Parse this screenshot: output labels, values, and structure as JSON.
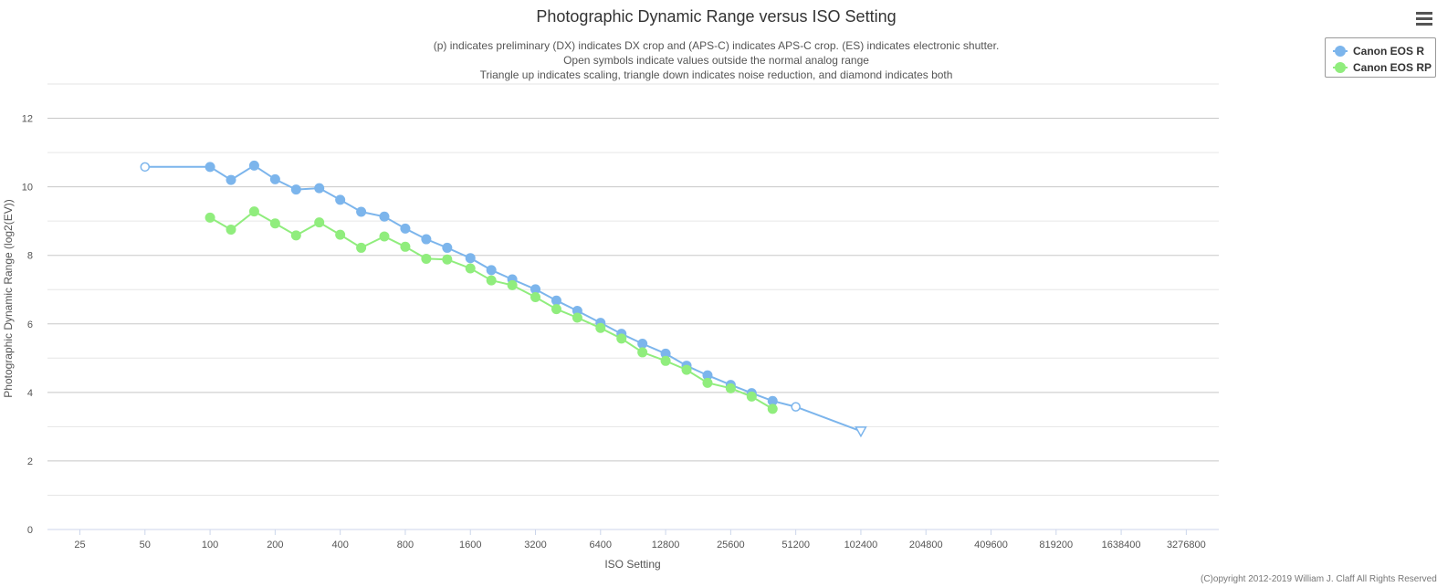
{
  "chart_data": {
    "type": "line",
    "title": "Photographic Dynamic Range versus ISO Setting",
    "subtitle": [
      "(p) indicates preliminary (DX) indicates DX crop and (APS-C) indicates APS-C crop. (ES) indicates electronic shutter.",
      "Open symbols indicate values outside the normal analog range",
      "Triangle up indicates scaling, triangle down indicates noise reduction, and diamond indicates both"
    ],
    "xlabel": "ISO Setting",
    "ylabel": "Photographic Dynamic Range (log2(EV))",
    "x_scale": "log2",
    "x_ticks": [
      "25",
      "50",
      "100",
      "200",
      "400",
      "800",
      "1600",
      "3200",
      "6400",
      "12800",
      "25600",
      "51200",
      "102400",
      "204800",
      "409600",
      "819200",
      "1638400",
      "3276800"
    ],
    "xlim": [
      17.7,
      4634000
    ],
    "ylim": [
      0,
      13
    ],
    "y_ticks": [
      0,
      2,
      4,
      6,
      8,
      10,
      12
    ],
    "grid": true,
    "legend_position": "top-right",
    "series": [
      {
        "name": "Canon EOS R",
        "color": "#7cb5ec",
        "points": [
          {
            "x": 50,
            "y": 10.58,
            "symbol": "open-circle"
          },
          {
            "x": 100,
            "y": 10.58,
            "symbol": "circle"
          },
          {
            "x": 125,
            "y": 10.2,
            "symbol": "circle"
          },
          {
            "x": 160,
            "y": 10.62,
            "symbol": "circle"
          },
          {
            "x": 200,
            "y": 10.22,
            "symbol": "circle"
          },
          {
            "x": 250,
            "y": 9.92,
            "symbol": "circle"
          },
          {
            "x": 320,
            "y": 9.96,
            "symbol": "circle"
          },
          {
            "x": 400,
            "y": 9.62,
            "symbol": "circle"
          },
          {
            "x": 500,
            "y": 9.27,
            "symbol": "circle"
          },
          {
            "x": 640,
            "y": 9.13,
            "symbol": "circle"
          },
          {
            "x": 800,
            "y": 8.78,
            "symbol": "circle"
          },
          {
            "x": 1000,
            "y": 8.47,
            "symbol": "circle"
          },
          {
            "x": 1250,
            "y": 8.22,
            "symbol": "circle"
          },
          {
            "x": 1600,
            "y": 7.92,
            "symbol": "circle"
          },
          {
            "x": 2000,
            "y": 7.57,
            "symbol": "circle"
          },
          {
            "x": 2500,
            "y": 7.3,
            "symbol": "circle"
          },
          {
            "x": 3200,
            "y": 7.01,
            "symbol": "circle"
          },
          {
            "x": 4000,
            "y": 6.68,
            "symbol": "circle"
          },
          {
            "x": 5000,
            "y": 6.38,
            "symbol": "circle"
          },
          {
            "x": 6400,
            "y": 6.03,
            "symbol": "circle"
          },
          {
            "x": 8000,
            "y": 5.71,
            "symbol": "circle"
          },
          {
            "x": 10000,
            "y": 5.42,
            "symbol": "circle"
          },
          {
            "x": 12800,
            "y": 5.13,
            "symbol": "circle"
          },
          {
            "x": 16000,
            "y": 4.78,
            "symbol": "circle"
          },
          {
            "x": 20000,
            "y": 4.5,
            "symbol": "circle"
          },
          {
            "x": 25600,
            "y": 4.22,
            "symbol": "circle"
          },
          {
            "x": 32000,
            "y": 3.98,
            "symbol": "circle"
          },
          {
            "x": 40000,
            "y": 3.75,
            "symbol": "circle"
          },
          {
            "x": 51200,
            "y": 3.58,
            "symbol": "open-circle"
          },
          {
            "x": 102400,
            "y": 2.87,
            "symbol": "open-triangle-down"
          }
        ]
      },
      {
        "name": "Canon EOS RP",
        "color": "#90ed7d",
        "points": [
          {
            "x": 100,
            "y": 9.1,
            "symbol": "circle"
          },
          {
            "x": 125,
            "y": 8.75,
            "symbol": "circle"
          },
          {
            "x": 160,
            "y": 9.28,
            "symbol": "circle"
          },
          {
            "x": 200,
            "y": 8.93,
            "symbol": "circle"
          },
          {
            "x": 250,
            "y": 8.58,
            "symbol": "circle"
          },
          {
            "x": 320,
            "y": 8.96,
            "symbol": "circle"
          },
          {
            "x": 400,
            "y": 8.6,
            "symbol": "circle"
          },
          {
            "x": 500,
            "y": 8.22,
            "symbol": "circle"
          },
          {
            "x": 640,
            "y": 8.55,
            "symbol": "circle"
          },
          {
            "x": 800,
            "y": 8.25,
            "symbol": "circle"
          },
          {
            "x": 1000,
            "y": 7.9,
            "symbol": "circle"
          },
          {
            "x": 1250,
            "y": 7.88,
            "symbol": "circle"
          },
          {
            "x": 1600,
            "y": 7.62,
            "symbol": "circle"
          },
          {
            "x": 2000,
            "y": 7.27,
            "symbol": "circle"
          },
          {
            "x": 2500,
            "y": 7.13,
            "symbol": "circle"
          },
          {
            "x": 3200,
            "y": 6.78,
            "symbol": "circle"
          },
          {
            "x": 4000,
            "y": 6.43,
            "symbol": "circle"
          },
          {
            "x": 5000,
            "y": 6.18,
            "symbol": "circle"
          },
          {
            "x": 6400,
            "y": 5.88,
            "symbol": "circle"
          },
          {
            "x": 8000,
            "y": 5.57,
            "symbol": "circle"
          },
          {
            "x": 10000,
            "y": 5.17,
            "symbol": "circle"
          },
          {
            "x": 12800,
            "y": 4.92,
            "symbol": "circle"
          },
          {
            "x": 16000,
            "y": 4.66,
            "symbol": "circle"
          },
          {
            "x": 20000,
            "y": 4.28,
            "symbol": "circle"
          },
          {
            "x": 25600,
            "y": 4.12,
            "symbol": "circle"
          },
          {
            "x": 32000,
            "y": 3.88,
            "symbol": "circle"
          },
          {
            "x": 40000,
            "y": 3.52,
            "symbol": "circle"
          }
        ]
      }
    ]
  },
  "credit": "(C)opyright 2012-2019 William J. Claff All Rights Reserved",
  "menu_icon": "hamburger-menu-icon"
}
